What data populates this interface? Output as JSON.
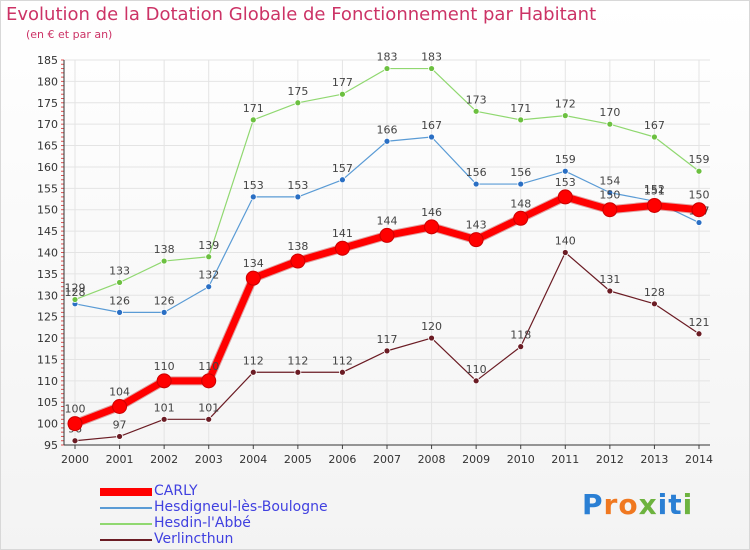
{
  "header": {
    "title": "Evolution de la Dotation Globale de Fonctionnement par Habitant",
    "subtitle": "(en € et par an)"
  },
  "logo": {
    "text": "Proxiti",
    "letters": [
      "P",
      "r",
      "o",
      "x",
      "i",
      "t",
      "i"
    ],
    "colors": [
      "#2a7fd4",
      "#f07820",
      "#f07820",
      "#6db33f",
      "#2a7fd4",
      "#2a7fd4",
      "#6db33f"
    ]
  },
  "chart_data": {
    "type": "line",
    "x": [
      "2000",
      "2001",
      "2002",
      "2003",
      "2004",
      "2005",
      "2006",
      "2007",
      "2008",
      "2009",
      "2010",
      "2011",
      "2012",
      "2013",
      "2014"
    ],
    "ylim": [
      95,
      185
    ],
    "yticks": [
      95,
      100,
      105,
      110,
      115,
      120,
      125,
      130,
      135,
      140,
      145,
      150,
      155,
      160,
      165,
      170,
      175,
      180,
      185
    ],
    "grid": true,
    "legend_position": "bottom-left",
    "series": [
      {
        "name": "Verlincthun",
        "color": "#6b1c24",
        "marker": "#6b1c24",
        "width": 1.2,
        "radius": 3,
        "values": [
          96,
          97,
          101,
          101,
          112,
          112,
          112,
          117,
          120,
          110,
          118,
          140,
          131,
          128,
          121
        ]
      },
      {
        "name": "Hesdigneul-lès-Boulogne",
        "color": "#5a9bd5",
        "marker": "#2a6fc4",
        "width": 1.2,
        "radius": 3,
        "values": [
          128,
          126,
          126,
          132,
          153,
          153,
          157,
          166,
          167,
          156,
          156,
          159,
          154,
          152,
          147
        ]
      },
      {
        "name": "Hesdin-l'Abbé",
        "color": "#90d870",
        "marker": "#6cc040",
        "width": 1.2,
        "radius": 3,
        "values": [
          129,
          133,
          138,
          139,
          171,
          175,
          177,
          183,
          183,
          173,
          171,
          172,
          170,
          167,
          159
        ]
      },
      {
        "name": "CARLY",
        "color": "#ff0000",
        "marker": "#ff0000",
        "width": 7,
        "radius": 7,
        "values": [
          100,
          104,
          110,
          110,
          134,
          138,
          141,
          144,
          146,
          143,
          148,
          153,
          150,
          151,
          150
        ]
      }
    ],
    "legend_order": [
      "CARLY",
      "Hesdigneul-lès-Boulogne",
      "Hesdin-l'Abbé",
      "Verlincthun"
    ]
  }
}
